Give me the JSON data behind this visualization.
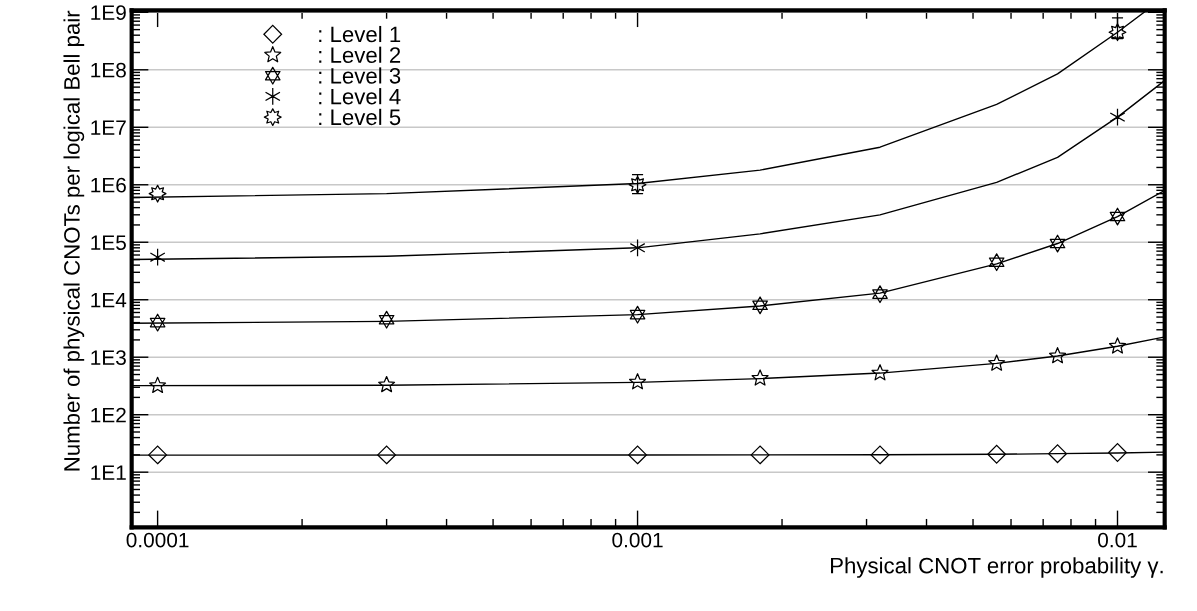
{
  "chart_data": {
    "type": "scatter",
    "xlabel": "Physical CNOT error probability γ.",
    "ylabel": "Number of physical CNOTs per logical Bell pair",
    "log": "xy",
    "xlim": [
      8.83e-05,
      0.01254
    ],
    "ylim": [
      1.1,
      1080000000
    ],
    "xticks": [
      0.0001,
      0.001,
      0.01
    ],
    "yticks": [
      {
        "value": 10,
        "label": "1E1"
      },
      {
        "value": 100,
        "label": "1E2"
      },
      {
        "value": 1000,
        "label": "1E3"
      },
      {
        "value": 10000,
        "label": "1E4"
      },
      {
        "value": 100000,
        "label": "1E5"
      },
      {
        "value": 1000000,
        "label": "1E6"
      },
      {
        "value": 10000000,
        "label": "1E7"
      },
      {
        "value": 100000000,
        "label": "1E8"
      },
      {
        "value": 1000000000,
        "label": "1E9"
      }
    ],
    "grid": "y",
    "legend": "top left",
    "series": [
      {
        "name": ": Level 1",
        "color": "#000000",
        "marker": "diamond",
        "x": [
          0.0001,
          0.0003,
          0.001,
          0.0018,
          0.0032,
          0.0056,
          0.0075,
          0.01
        ],
        "values": [
          20,
          20,
          20,
          20,
          20,
          20.5,
          21,
          22
        ]
      },
      {
        "name": ": Level 2",
        "color": "#000000",
        "marker": "star",
        "x": [
          0.0001,
          0.0003,
          0.001,
          0.0018,
          0.0032,
          0.0056,
          0.0075,
          0.01
        ],
        "values": [
          320,
          330,
          370,
          430,
          530,
          780,
          1050,
          1550
        ]
      },
      {
        "name": ": Level 3",
        "color": "#000000",
        "marker": "star",
        "x": [
          0.0001,
          0.0003,
          0.001,
          0.0018,
          0.0032,
          0.0056,
          0.0075,
          0.01
        ],
        "values": [
          4000,
          4500,
          5500,
          8000,
          12500,
          45000,
          95000,
          280000
        ]
      },
      {
        "name": ": Level 4",
        "color": "#000000",
        "marker": "cross",
        "x": [
          0.0001,
          0.001,
          0.01
        ],
        "values": [
          55000,
          80000,
          15000000
        ]
      },
      {
        "name": ": Level 5",
        "color": "#000000",
        "marker": "star",
        "x": [
          0.0001,
          0.001,
          0.01
        ],
        "values": [
          700000,
          1000000,
          450000000
        ],
        "errors": [
          null,
          [
            700000,
            1500000
          ],
          [
            350000000,
            800000000
          ]
        ]
      },
      {
        "type": "line",
        "color": "#000000",
        "x": [
          8.83e-05,
          0.001,
          0.0032,
          0.0056,
          0.0075,
          0.01,
          0.01254
        ],
        "values": [
          19.8,
          19.9,
          20.1,
          20.5,
          21,
          21.6,
          22.3
        ]
      },
      {
        "type": "line",
        "color": "#000000",
        "x": [
          8.83e-05,
          0.0003,
          0.001,
          0.0018,
          0.0032,
          0.0056,
          0.0075,
          0.01,
          0.01254
        ],
        "values": [
          320,
          325,
          365,
          425,
          530,
          780,
          1050,
          1550,
          2250
        ]
      },
      {
        "type": "line",
        "color": "#000000",
        "x": [
          8.83e-05,
          0.0003,
          0.001,
          0.0018,
          0.0032,
          0.0056,
          0.0075,
          0.01,
          0.01254
        ],
        "values": [
          3900,
          4200,
          5500,
          7800,
          13000,
          42000,
          95000,
          280000,
          800000
        ]
      },
      {
        "type": "line",
        "color": "#000000",
        "x": [
          8.83e-05,
          0.0003,
          0.001,
          0.0018,
          0.0032,
          0.0056,
          0.0075,
          0.01,
          0.01254
        ],
        "values": [
          50000,
          57000,
          80000,
          140000,
          300000,
          1100000,
          3000000,
          15000000,
          65000000
        ]
      },
      {
        "type": "line",
        "color": "#000000",
        "x": [
          8.83e-05,
          0.0003,
          0.001,
          0.0018,
          0.0032,
          0.0056,
          0.0075,
          0.01,
          0.0115
        ],
        "values": [
          600000,
          700000,
          1050000,
          1800000,
          4500000,
          25000000,
          85000000,
          450000000,
          1080000000
        ]
      }
    ]
  }
}
